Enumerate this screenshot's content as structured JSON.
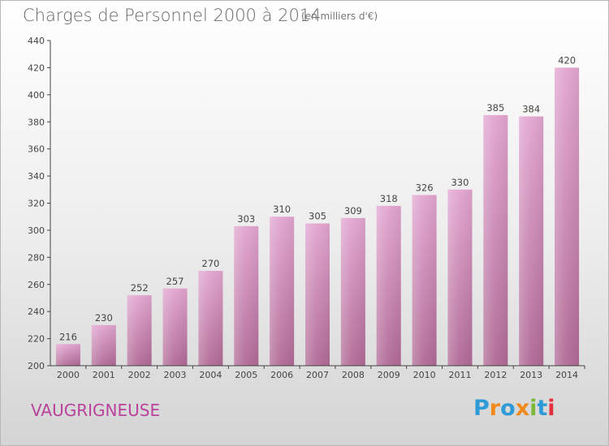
{
  "title": "Charges de Personnel 2000 à 2014",
  "subtitle": "(en milliers d'€)",
  "commune": "VAUGRIGNEUSE",
  "logo": {
    "text": "Proxiti",
    "letters": [
      {
        "ch": "P",
        "color": "#2f9bd6"
      },
      {
        "ch": "r",
        "color": "#f08a1c"
      },
      {
        "ch": "o",
        "color": "#2f9bd6"
      },
      {
        "ch": "x",
        "color": "#f08a1c"
      },
      {
        "ch": "i",
        "color": "#7ab83a"
      },
      {
        "ch": "t",
        "color": "#2f9bd6"
      },
      {
        "ch": "i",
        "color": "#e4303c"
      }
    ]
  },
  "colors": {
    "bar_top": "#e2a5d0",
    "bar_bottom": "#b06a95",
    "commune": "#b9429c",
    "axis": "#444444"
  },
  "chart_data": {
    "type": "bar",
    "title": "Charges de Personnel 2000 à 2014",
    "subtitle": "(en milliers d'€)",
    "categories": [
      "2000",
      "2001",
      "2002",
      "2003",
      "2004",
      "2005",
      "2006",
      "2007",
      "2008",
      "2009",
      "2010",
      "2011",
      "2012",
      "2013",
      "2014"
    ],
    "values": [
      216,
      230,
      252,
      257,
      270,
      303,
      310,
      305,
      309,
      318,
      326,
      330,
      385,
      384,
      420
    ],
    "ylim": [
      200,
      440
    ],
    "yticks": [
      200,
      220,
      240,
      260,
      280,
      300,
      320,
      340,
      360,
      380,
      400,
      420,
      440
    ],
    "grid": false,
    "legend": "none"
  }
}
